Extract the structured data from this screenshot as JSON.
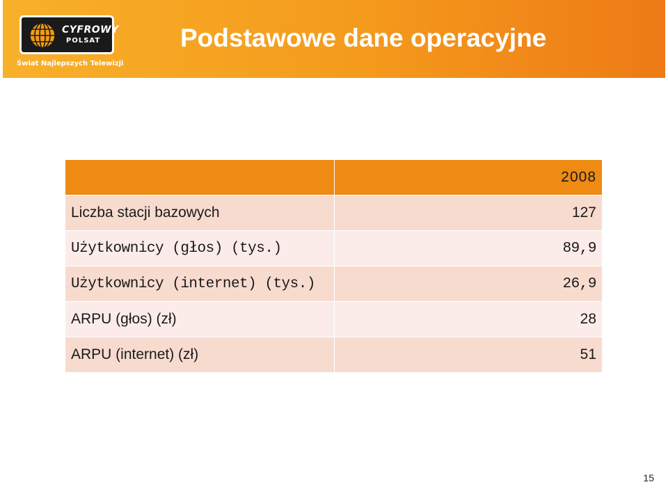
{
  "header": {
    "logo": {
      "line1": "CYFROWY",
      "line2": "POLSAT",
      "tagline": "Świat Najlepszych Telewizji"
    },
    "title": "Podstawowe dane operacyjne"
  },
  "table": {
    "year_header": "2008",
    "rows": [
      {
        "label": "Liczba stacji bazowych",
        "value": "127"
      },
      {
        "label": "Użytkownicy (głos) (tys.)",
        "value": "89,9"
      },
      {
        "label": "Użytkownicy (internet) (tys.)",
        "value": "26,9"
      },
      {
        "label": "ARPU (głos) (zł)",
        "value": "28"
      },
      {
        "label": "ARPU (internet) (zł)",
        "value": "51"
      }
    ]
  },
  "footer": {
    "page_number": "15"
  },
  "colors": {
    "header_gradient_start": "#f8b02a",
    "header_gradient_end": "#ee7a16",
    "table_header": "#ef8a12",
    "row_dark": "#f8dbcf",
    "row_light": "#fbecea"
  }
}
